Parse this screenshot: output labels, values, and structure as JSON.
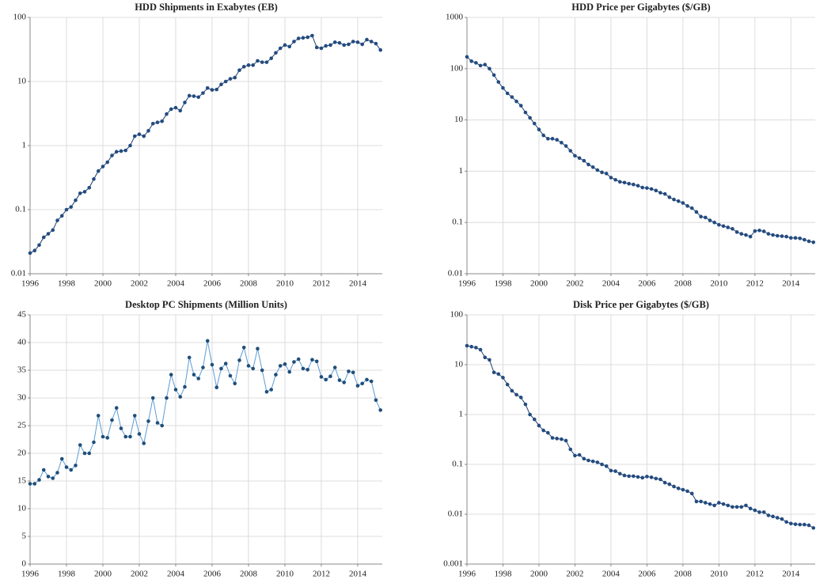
{
  "chart_data": [
    {
      "type": "line",
      "title": "HDD Shipments in Exabytes (EB)",
      "log_scale": true,
      "grid": true,
      "x": [
        1996,
        1996.25,
        1996.5,
        1996.75,
        1997,
        1997.25,
        1997.5,
        1997.75,
        1998,
        1998.25,
        1998.5,
        1998.75,
        1999,
        1999.25,
        1999.5,
        1999.75,
        2000,
        2000.25,
        2000.5,
        2000.75,
        2001,
        2001.25,
        2001.5,
        2001.75,
        2002,
        2002.25,
        2002.5,
        2002.75,
        2003,
        2003.25,
        2003.5,
        2003.75,
        2004,
        2004.25,
        2004.5,
        2004.75,
        2005,
        2005.25,
        2005.5,
        2005.75,
        2006,
        2006.25,
        2006.5,
        2006.75,
        2007,
        2007.25,
        2007.5,
        2007.75,
        2008,
        2008.25,
        2008.5,
        2008.75,
        2009,
        2009.25,
        2009.5,
        2009.75,
        2010,
        2010.25,
        2010.5,
        2010.75,
        2011,
        2011.25,
        2011.5,
        2011.75,
        2012,
        2012.25,
        2012.5,
        2012.75,
        2013,
        2013.25,
        2013.5,
        2013.75,
        2014,
        2014.25,
        2014.5,
        2014.75,
        2015,
        2015.25
      ],
      "series": [
        {
          "name": "HDD Shipments",
          "color": "#1f3f6e",
          "marker_color": "#234b80",
          "values": [
            0.021,
            0.023,
            0.028,
            0.037,
            0.042,
            0.048,
            0.068,
            0.08,
            0.1,
            0.11,
            0.14,
            0.18,
            0.19,
            0.22,
            0.3,
            0.4,
            0.47,
            0.55,
            0.7,
            0.8,
            0.82,
            0.84,
            1.0,
            1.4,
            1.5,
            1.4,
            1.7,
            2.2,
            2.3,
            2.4,
            3.1,
            3.7,
            3.9,
            3.5,
            4.7,
            6.0,
            5.9,
            5.7,
            6.6,
            7.9,
            7.4,
            7.5,
            9.0,
            10,
            11,
            11.5,
            15,
            17,
            18,
            18,
            21,
            20,
            20,
            23,
            28,
            33,
            37,
            35,
            42,
            47,
            48,
            49,
            52,
            34,
            33,
            36,
            37,
            41,
            40,
            37,
            38,
            42,
            41,
            38,
            45,
            42,
            39,
            31
          ]
        }
      ],
      "xlim": [
        1996,
        2015.35
      ],
      "xticks": [
        1996,
        1998,
        2000,
        2002,
        2004,
        2006,
        2008,
        2010,
        2012,
        2014
      ],
      "ylim": [
        0.01,
        100
      ],
      "yticks": [
        0.01,
        0.1,
        1,
        10,
        100
      ]
    },
    {
      "type": "line",
      "title": "HDD Price per Gigabytes ($/GB)",
      "log_scale": true,
      "grid": true,
      "x": [
        1996,
        1996.25,
        1996.5,
        1996.75,
        1997,
        1997.25,
        1997.5,
        1997.75,
        1998,
        1998.25,
        1998.5,
        1998.75,
        1999,
        1999.25,
        1999.5,
        1999.75,
        2000,
        2000.25,
        2000.5,
        2000.75,
        2001,
        2001.25,
        2001.5,
        2001.75,
        2002,
        2002.25,
        2002.5,
        2002.75,
        2003,
        2003.25,
        2003.5,
        2003.75,
        2004,
        2004.25,
        2004.5,
        2004.75,
        2005,
        2005.25,
        2005.5,
        2005.75,
        2006,
        2006.25,
        2006.5,
        2006.75,
        2007,
        2007.25,
        2007.5,
        2007.75,
        2008,
        2008.25,
        2008.5,
        2008.75,
        2009,
        2009.25,
        2009.5,
        2009.75,
        2010,
        2010.25,
        2010.5,
        2010.75,
        2011,
        2011.25,
        2011.5,
        2011.75,
        2012,
        2012.25,
        2012.5,
        2012.75,
        2013,
        2013.25,
        2013.5,
        2013.75,
        2014,
        2014.25,
        2014.5,
        2014.75,
        2015,
        2015.25
      ],
      "series": [
        {
          "name": "HDD Price",
          "color": "#1f3f6e",
          "marker_color": "#234b80",
          "values": [
            170,
            140,
            130,
            115,
            120,
            100,
            75,
            55,
            42,
            33,
            28,
            23,
            19,
            14,
            11,
            8.5,
            6.5,
            5,
            4.3,
            4.3,
            4.1,
            3.6,
            3.1,
            2.5,
            2.0,
            1.8,
            1.6,
            1.35,
            1.2,
            1.05,
            0.95,
            0.9,
            0.75,
            0.68,
            0.62,
            0.6,
            0.57,
            0.55,
            0.52,
            0.48,
            0.47,
            0.45,
            0.42,
            0.38,
            0.36,
            0.31,
            0.28,
            0.26,
            0.24,
            0.21,
            0.19,
            0.16,
            0.13,
            0.125,
            0.11,
            0.1,
            0.09,
            0.085,
            0.08,
            0.075,
            0.065,
            0.06,
            0.057,
            0.053,
            0.068,
            0.07,
            0.067,
            0.06,
            0.057,
            0.055,
            0.054,
            0.053,
            0.05,
            0.05,
            0.049,
            0.046,
            0.043,
            0.041
          ]
        }
      ],
      "xlim": [
        1996,
        2015.35
      ],
      "xticks": [
        1996,
        1998,
        2000,
        2002,
        2004,
        2006,
        2008,
        2010,
        2012,
        2014
      ],
      "ylim": [
        0.01,
        1000
      ],
      "yticks": [
        0.01,
        0.1,
        1,
        10,
        100,
        1000
      ]
    },
    {
      "type": "line",
      "title": "Desktop PC Shipments (Million Units)",
      "log_scale": false,
      "grid": true,
      "x": [
        1996,
        1996.25,
        1996.5,
        1996.75,
        1997,
        1997.25,
        1997.5,
        1997.75,
        1998,
        1998.25,
        1998.5,
        1998.75,
        1999,
        1999.25,
        1999.5,
        1999.75,
        2000,
        2000.25,
        2000.5,
        2000.75,
        2001,
        2001.25,
        2001.5,
        2001.75,
        2002,
        2002.25,
        2002.5,
        2002.75,
        2003,
        2003.25,
        2003.5,
        2003.75,
        2004,
        2004.25,
        2004.5,
        2004.75,
        2005,
        2005.25,
        2005.5,
        2005.75,
        2006,
        2006.25,
        2006.5,
        2006.75,
        2007,
        2007.25,
        2007.5,
        2007.75,
        2008,
        2008.25,
        2008.5,
        2008.75,
        2009,
        2009.25,
        2009.5,
        2009.75,
        2010,
        2010.25,
        2010.5,
        2010.75,
        2011,
        2011.25,
        2011.5,
        2011.75,
        2012,
        2012.25,
        2012.5,
        2012.75,
        2013,
        2013.25,
        2013.5,
        2013.75,
        2014,
        2014.25,
        2014.5,
        2014.75,
        2015,
        2015.25
      ],
      "series": [
        {
          "name": "Desktop PC Shipments",
          "color": "#5b9bd5",
          "marker_color": "#1f4e79",
          "values": [
            14.5,
            14.5,
            15.2,
            17.0,
            15.8,
            15.5,
            16.5,
            19.0,
            17.5,
            17.0,
            17.8,
            21.5,
            20.0,
            20.0,
            22.0,
            26.8,
            23.0,
            22.8,
            26.0,
            28.2,
            24.5,
            23.0,
            23.0,
            26.8,
            23.5,
            21.8,
            25.8,
            30.0,
            25.5,
            25.0,
            30.0,
            34.2,
            31.5,
            30.2,
            32.0,
            37.3,
            34.2,
            33.5,
            35.5,
            40.3,
            36.0,
            31.9,
            35.3,
            36.2,
            34.0,
            32.6,
            36.8,
            39.1,
            35.8,
            35.3,
            38.9,
            35.0,
            31.1,
            31.5,
            34.2,
            35.8,
            36.1,
            34.7,
            36.5,
            37.0,
            35.3,
            35.1,
            36.9,
            36.6,
            33.8,
            33.3,
            33.9,
            35.5,
            33.2,
            32.8,
            34.8,
            34.6,
            32.2,
            32.6,
            33.3,
            33.0,
            29.6,
            27.8
          ]
        }
      ],
      "xlim": [
        1996,
        2015.35
      ],
      "xticks": [
        1996,
        1998,
        2000,
        2002,
        2004,
        2006,
        2008,
        2010,
        2012,
        2014
      ],
      "ylim": [
        0,
        45
      ],
      "yticks": [
        0,
        5,
        10,
        15,
        20,
        25,
        30,
        35,
        40,
        45
      ]
    },
    {
      "type": "line",
      "title": "Disk Price per Gigabytes ($/GB)",
      "log_scale": true,
      "grid": true,
      "x": [
        1996,
        1996.25,
        1996.5,
        1996.75,
        1997,
        1997.25,
        1997.5,
        1997.75,
        1998,
        1998.25,
        1998.5,
        1998.75,
        1999,
        1999.25,
        1999.5,
        1999.75,
        2000,
        2000.25,
        2000.5,
        2000.75,
        2001,
        2001.25,
        2001.5,
        2001.75,
        2002,
        2002.25,
        2002.5,
        2002.75,
        2003,
        2003.25,
        2003.5,
        2003.75,
        2004,
        2004.25,
        2004.5,
        2004.75,
        2005,
        2005.25,
        2005.5,
        2005.75,
        2006,
        2006.25,
        2006.5,
        2006.75,
        2007,
        2007.25,
        2007.5,
        2007.75,
        2008,
        2008.25,
        2008.5,
        2008.75,
        2009,
        2009.25,
        2009.5,
        2009.75,
        2010,
        2010.25,
        2010.5,
        2010.75,
        2011,
        2011.25,
        2011.5,
        2011.75,
        2012,
        2012.25,
        2012.5,
        2012.75,
        2013,
        2013.25,
        2013.5,
        2013.75,
        2014,
        2014.25,
        2014.5,
        2014.75,
        2015,
        2015.25
      ],
      "series": [
        {
          "name": "Disk Price",
          "color": "#1f3f6e",
          "marker_color": "#234b80",
          "values": [
            24,
            23,
            22,
            20,
            14,
            12.5,
            7,
            6.5,
            5.5,
            4,
            3,
            2.5,
            2.2,
            1.6,
            1.0,
            0.8,
            0.6,
            0.48,
            0.43,
            0.34,
            0.33,
            0.32,
            0.3,
            0.2,
            0.15,
            0.155,
            0.13,
            0.12,
            0.115,
            0.11,
            0.1,
            0.092,
            0.075,
            0.073,
            0.065,
            0.06,
            0.058,
            0.058,
            0.056,
            0.054,
            0.057,
            0.055,
            0.052,
            0.05,
            0.043,
            0.04,
            0.036,
            0.033,
            0.031,
            0.029,
            0.026,
            0.018,
            0.018,
            0.017,
            0.016,
            0.015,
            0.017,
            0.016,
            0.015,
            0.014,
            0.014,
            0.014,
            0.015,
            0.013,
            0.012,
            0.011,
            0.011,
            0.0095,
            0.009,
            0.0085,
            0.008,
            0.007,
            0.0065,
            0.0063,
            0.0062,
            0.0062,
            0.006,
            0.0053
          ]
        }
      ],
      "xlim": [
        1996,
        2015.35
      ],
      "xticks": [
        1996,
        1998,
        2000,
        2002,
        2004,
        2006,
        2008,
        2010,
        2012,
        2014
      ],
      "ylim": [
        0.001,
        100
      ],
      "yticks": [
        0.001,
        0.01,
        0.1,
        1,
        10,
        100
      ]
    }
  ]
}
